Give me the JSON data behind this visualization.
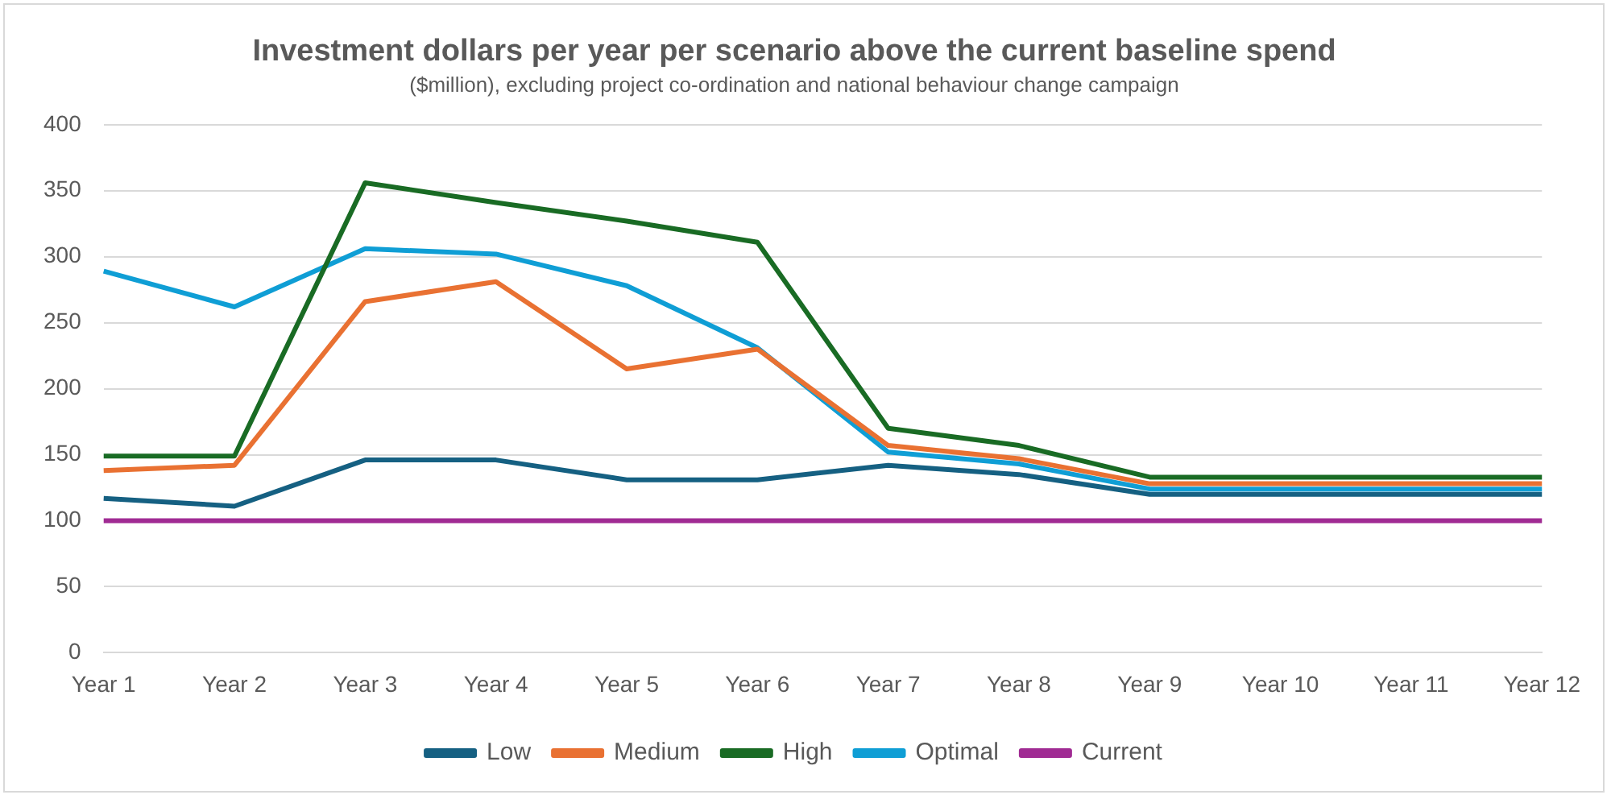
{
  "chart_data": {
    "type": "line",
    "title": "Investment dollars per year per scenario above the current baseline spend",
    "subtitle": "($million), excluding project co-ordination and national behaviour change campaign",
    "categories": [
      "Year 1",
      "Year 2",
      "Year 3",
      "Year 4",
      "Year 5",
      "Year 6",
      "Year 7",
      "Year 8",
      "Year 9",
      "Year 10",
      "Year 11",
      "Year 12"
    ],
    "series": [
      {
        "name": "Low",
        "color": "#156082",
        "values": [
          117,
          111,
          146,
          146,
          131,
          131,
          142,
          135,
          120,
          120,
          120,
          120
        ]
      },
      {
        "name": "Medium",
        "color": "#e97132",
        "values": [
          138,
          142,
          266,
          281,
          215,
          230,
          157,
          147,
          128,
          128,
          128,
          128
        ]
      },
      {
        "name": "High",
        "color": "#196b24",
        "values": [
          149,
          149,
          356,
          341,
          327,
          311,
          170,
          157,
          133,
          133,
          133,
          133
        ]
      },
      {
        "name": "Optimal",
        "color": "#0f9ed5",
        "values": [
          289,
          262,
          306,
          302,
          278,
          231,
          152,
          143,
          124,
          124,
          124,
          124
        ]
      },
      {
        "name": "Current",
        "color": "#a02b93",
        "values": [
          100,
          100,
          100,
          100,
          100,
          100,
          100,
          100,
          100,
          100,
          100,
          100
        ]
      }
    ],
    "ylim": [
      0,
      400
    ],
    "yticks": [
      0,
      50,
      100,
      150,
      200,
      250,
      300,
      350,
      400
    ],
    "grid": "y",
    "legend": "bottom",
    "marker": "none",
    "line_style": "solid"
  }
}
